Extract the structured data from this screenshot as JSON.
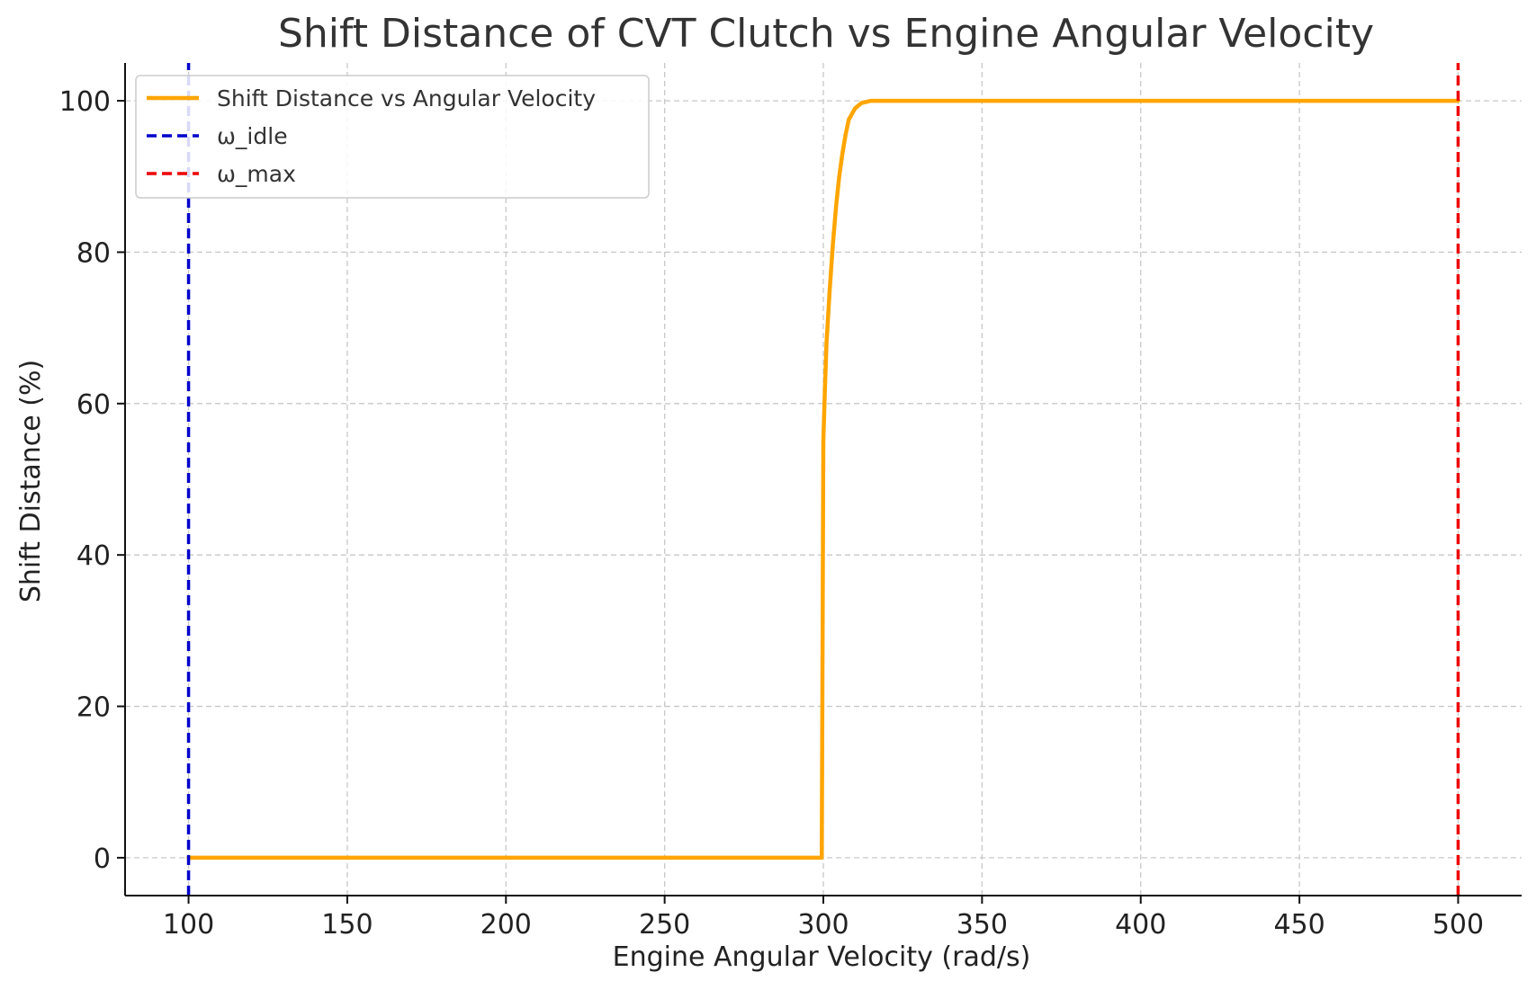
{
  "chart_data": {
    "type": "line",
    "title": "Shift Distance of CVT Clutch vs Engine Angular Velocity",
    "xlabel": "Engine Angular Velocity (rad/s)",
    "ylabel": "Shift Distance (%)",
    "xlim": [
      80,
      520
    ],
    "ylim": [
      -5,
      105
    ],
    "xticks": [
      100,
      150,
      200,
      250,
      300,
      350,
      400,
      450,
      500
    ],
    "yticks": [
      0,
      20,
      40,
      60,
      80,
      100
    ],
    "grid": true,
    "legend_position": "top-left",
    "series": [
      {
        "name": "Shift Distance vs Angular Velocity",
        "color": "#FFA500",
        "style": "solid",
        "x": [
          100,
          150,
          200,
          250,
          299.5,
          300,
          300.5,
          301,
          302,
          303,
          304,
          305,
          306,
          307,
          308,
          310,
          312,
          315,
          320,
          350,
          400,
          450,
          500
        ],
        "y": [
          0,
          0,
          0,
          0,
          0,
          55,
          62,
          68,
          75,
          81,
          86,
          90,
          93,
          95.5,
          97.5,
          99,
          99.7,
          100,
          100,
          100,
          100,
          100,
          100
        ]
      },
      {
        "name": "ω_idle",
        "color": "#0000CC",
        "style": "dashed",
        "x": [
          100,
          100
        ],
        "y": [
          -5,
          105
        ]
      },
      {
        "name": "ω_max",
        "color": "#EE0000",
        "style": "dashed",
        "x": [
          500,
          500
        ],
        "y": [
          -5,
          105
        ]
      }
    ]
  }
}
